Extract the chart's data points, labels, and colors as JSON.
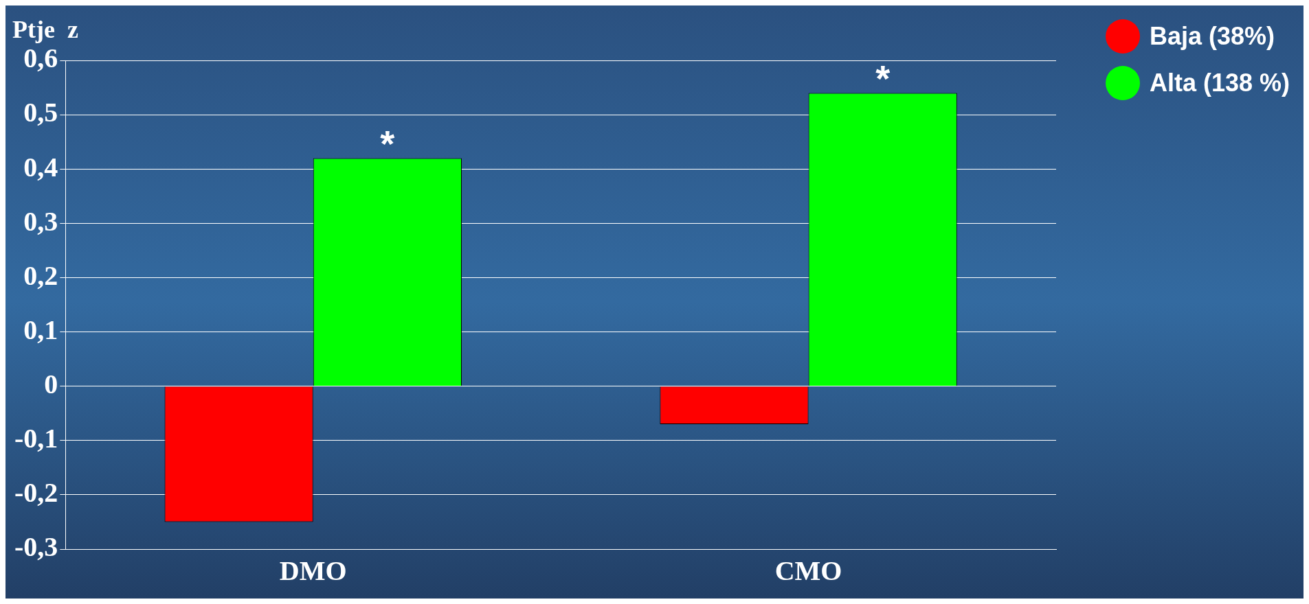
{
  "chart_data": {
    "type": "bar",
    "ylabel": "Ptje  z",
    "categories": [
      "DMO",
      "CMO"
    ],
    "series": [
      {
        "name": "Baja (38%)",
        "color": "#ff0000",
        "values": [
          -0.25,
          -0.07
        ]
      },
      {
        "name": "Alta (138 %)",
        "color": "#00ff00",
        "values": [
          0.42,
          0.54
        ]
      }
    ],
    "ylim": [
      -0.3,
      0.6
    ],
    "yticks": [
      {
        "value": -0.3,
        "label": "-0,3"
      },
      {
        "value": -0.2,
        "label": "-0,2"
      },
      {
        "value": -0.1,
        "label": "-0,1"
      },
      {
        "value": 0,
        "label": "0"
      },
      {
        "value": 0.1,
        "label": "0,1"
      },
      {
        "value": 0.2,
        "label": "0,2"
      },
      {
        "value": 0.3,
        "label": "0,3"
      },
      {
        "value": 0.4,
        "label": "0,4"
      },
      {
        "value": 0.5,
        "label": "0,5"
      },
      {
        "value": 0.6,
        "label": "0,6"
      }
    ],
    "annotations": [
      {
        "text": "*",
        "x": "DMO",
        "y": 0.42
      },
      {
        "text": "*",
        "x": "CMO",
        "y": 0.54
      }
    ],
    "grid": "y",
    "legend": "top right"
  }
}
